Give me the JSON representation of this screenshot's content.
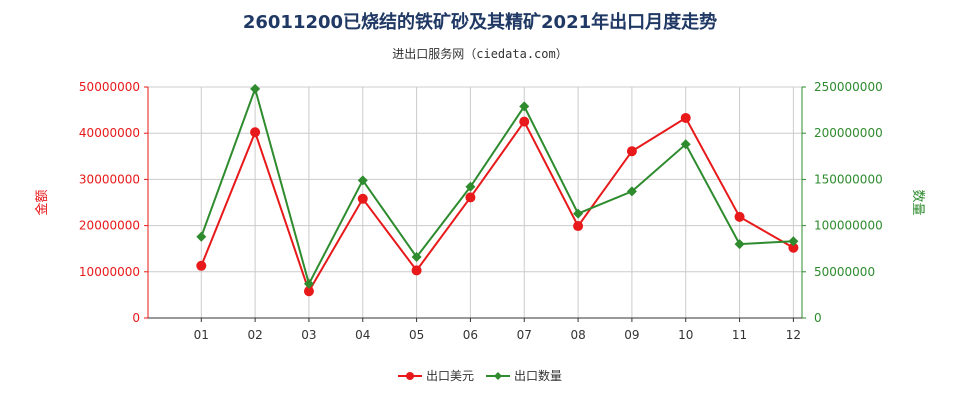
{
  "title": "26011200已烧结的铁矿砂及其精矿2021年出口月度走势",
  "subtitle": "进出口服务网（ciedata.com）",
  "colors": {
    "left_axis": "#e8191a",
    "right_axis": "#2e8b2e",
    "grid": "#cccccc",
    "axis": "#333333"
  },
  "chart_data": {
    "type": "line",
    "title": "26011200已烧结的铁矿砂及其精矿2021年出口月度走势",
    "categories": [
      "01",
      "02",
      "03",
      "04",
      "05",
      "06",
      "07",
      "08",
      "09",
      "10",
      "11",
      "12"
    ],
    "ylabel_left": "金额",
    "ylabel_right": "数量",
    "ylim_left": [
      0,
      50000000
    ],
    "ylim_right": [
      0,
      250000000
    ],
    "yticks_left": [
      "0",
      "10000000",
      "20000000",
      "30000000",
      "40000000",
      "50000000"
    ],
    "yticks_right": [
      "0",
      "50000000",
      "100000000",
      "150000000",
      "200000000",
      "250000000"
    ],
    "grid": true,
    "legend_position": "bottom",
    "series": [
      {
        "name": "出口美元",
        "axis": "left",
        "color": "#e8191a",
        "marker": "circle",
        "values": [
          11300000,
          40200000,
          5800000,
          25800000,
          10300000,
          26100000,
          42500000,
          19900000,
          36100000,
          43300000,
          21900000,
          15200000
        ]
      },
      {
        "name": "出口数量",
        "axis": "right",
        "color": "#2e8b2e",
        "marker": "diamond",
        "values": [
          88000000,
          248000000,
          37000000,
          149000000,
          66000000,
          142000000,
          229000000,
          113000000,
          137000000,
          188000000,
          80000000,
          83000000
        ]
      }
    ]
  }
}
